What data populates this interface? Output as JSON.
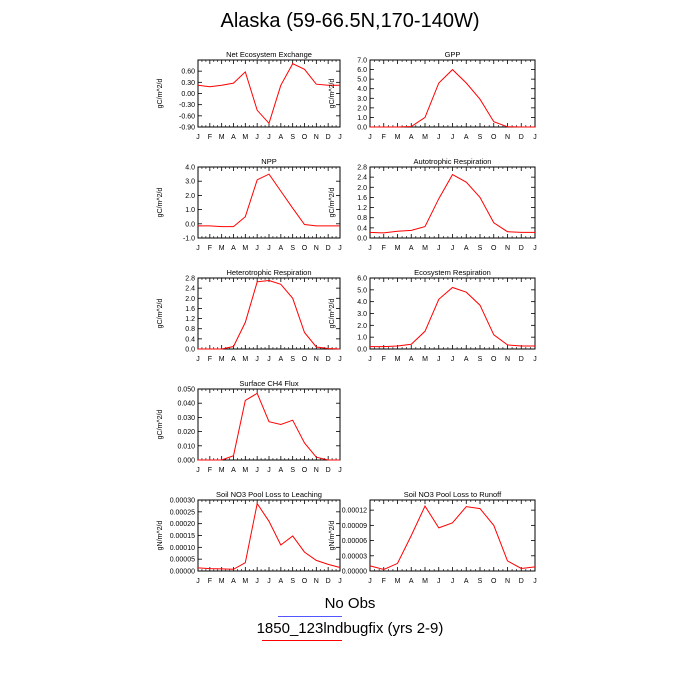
{
  "title": "Alaska (59-66.5N,170-140W)",
  "months": [
    "J",
    "F",
    "M",
    "A",
    "M",
    "J",
    "J",
    "A",
    "S",
    "O",
    "N",
    "D",
    "J"
  ],
  "legend": [
    {
      "label": "No Obs",
      "color": "#5555ff"
    },
    {
      "label": "1850_123lndbugfix (yrs 2-9)",
      "color": "#ff0000"
    }
  ],
  "line_color": "#ff0000",
  "chart_data": [
    {
      "type": "line",
      "title": "Net Ecosystem Exchange",
      "ylabel": "gC/m^2/d",
      "ylim": [
        -0.9,
        0.9
      ],
      "yticks": [
        "-0.90",
        "-0.60",
        "-0.30",
        "0.00",
        "0.30",
        "0.60"
      ],
      "yticks_v": [
        -0.9,
        -0.6,
        -0.3,
        0,
        0.3,
        0.6
      ],
      "values": [
        0.22,
        0.18,
        0.22,
        0.28,
        0.58,
        -0.45,
        -0.8,
        0.22,
        0.8,
        0.65,
        0.25,
        0.22,
        0.22
      ]
    },
    {
      "type": "line",
      "title": "GPP",
      "ylabel": "gC/m^2/d",
      "ylim": [
        0,
        7
      ],
      "yticks": [
        "0.0",
        "1.0",
        "2.0",
        "3.0",
        "4.0",
        "5.0",
        "6.0",
        "7.0"
      ],
      "yticks_v": [
        0,
        1,
        2,
        3,
        4,
        5,
        6,
        7
      ],
      "values": [
        0,
        0,
        0,
        0.05,
        1.0,
        4.6,
        6.0,
        4.6,
        2.9,
        0.55,
        0.02,
        0,
        0
      ]
    },
    {
      "type": "line",
      "title": "NPP",
      "ylabel": "gC/m^2/d",
      "ylim": [
        -1,
        4
      ],
      "yticks": [
        "-1.0",
        "0.0",
        "1.0",
        "2.0",
        "3.0",
        "4.0"
      ],
      "yticks_v": [
        -1,
        0,
        1,
        2,
        3,
        4
      ],
      "values": [
        -0.15,
        -0.15,
        -0.2,
        -0.2,
        0.5,
        3.1,
        3.5,
        2.3,
        1.1,
        -0.05,
        -0.15,
        -0.15,
        -0.15
      ]
    },
    {
      "type": "line",
      "title": "Autotrophic Respiration",
      "ylabel": "gC/m^2/d",
      "ylim": [
        0,
        2.8
      ],
      "yticks": [
        "0.0",
        "0.4",
        "0.8",
        "1.2",
        "1.6",
        "2.0",
        "2.4",
        "2.8"
      ],
      "yticks_v": [
        0,
        0.4,
        0.8,
        1.2,
        1.6,
        2.0,
        2.4,
        2.8
      ],
      "values": [
        0.22,
        0.2,
        0.27,
        0.3,
        0.45,
        1.55,
        2.5,
        2.2,
        1.6,
        0.6,
        0.25,
        0.22,
        0.22
      ]
    },
    {
      "type": "line",
      "title": "Heterotrophic Respiration",
      "ylabel": "gC/m^2/d",
      "ylim": [
        0,
        2.8
      ],
      "yticks": [
        "0.0",
        "0.4",
        "0.8",
        "1.2",
        "1.6",
        "2.0",
        "2.4",
        "2.8"
      ],
      "yticks_v": [
        0,
        0.4,
        0.8,
        1.2,
        1.6,
        2.0,
        2.4,
        2.8
      ],
      "values": [
        0,
        0,
        0,
        0.1,
        1.05,
        2.65,
        2.7,
        2.55,
        2.0,
        0.65,
        0.08,
        0.02,
        0
      ]
    },
    {
      "type": "line",
      "title": "Ecosystem Respiration",
      "ylabel": "gC/m^2/d",
      "ylim": [
        0,
        6
      ],
      "yticks": [
        "0.0",
        "1.0",
        "2.0",
        "3.0",
        "4.0",
        "5.0",
        "6.0"
      ],
      "yticks_v": [
        0,
        1,
        2,
        3,
        4,
        5,
        6
      ],
      "values": [
        0.2,
        0.2,
        0.25,
        0.4,
        1.5,
        4.2,
        5.2,
        4.8,
        3.7,
        1.2,
        0.35,
        0.25,
        0.25
      ]
    },
    {
      "type": "line",
      "title": "Surface CH4 Flux",
      "ylabel": "gC/m^2/d",
      "ylim": [
        0,
        0.05
      ],
      "yticks": [
        "0.000",
        "0.010",
        "0.020",
        "0.030",
        "0.040",
        "0.050"
      ],
      "yticks_v": [
        0,
        0.01,
        0.02,
        0.03,
        0.04,
        0.05
      ],
      "values": [
        0,
        0,
        0,
        0.003,
        0.042,
        0.047,
        0.027,
        0.025,
        0.028,
        0.012,
        0.002,
        0,
        0
      ]
    },
    {
      "type": "line",
      "title": "Soil NO3 Pool Loss to Leaching",
      "ylabel": "gN/m^2/d",
      "ylim": [
        0,
        0.0003
      ],
      "yticks": [
        "0.00000",
        "0.00005",
        "0.00010",
        "0.00015",
        "0.00020",
        "0.00025",
        "0.00030"
      ],
      "yticks_v": [
        0,
        5e-05,
        0.0001,
        0.00015,
        0.0002,
        0.00025,
        0.0003
      ],
      "values": [
        1.3e-05,
        1e-05,
        9e-06,
        7e-06,
        3.5e-05,
        0.000285,
        0.00021,
        0.00011,
        0.000148,
        8e-05,
        4.5e-05,
        2.8e-05,
        1.5e-05
      ]
    },
    {
      "type": "line",
      "title": "Soil NO3 Pool Loss to Runoff",
      "ylabel": "gN/m^2/d",
      "ylim": [
        0,
        0.00014
      ],
      "yticks": [
        "0.00000",
        "0.00003",
        "0.00006",
        "0.00009",
        "0.00012"
      ],
      "yticks_v": [
        0,
        3e-05,
        6e-05,
        9e-05,
        0.00012
      ],
      "values": [
        1e-05,
        3e-06,
        1.5e-05,
        7e-05,
        0.000128,
        8.5e-05,
        9.5e-05,
        0.000127,
        0.000123,
        9e-05,
        2e-05,
        5e-06,
        8e-06
      ]
    }
  ]
}
